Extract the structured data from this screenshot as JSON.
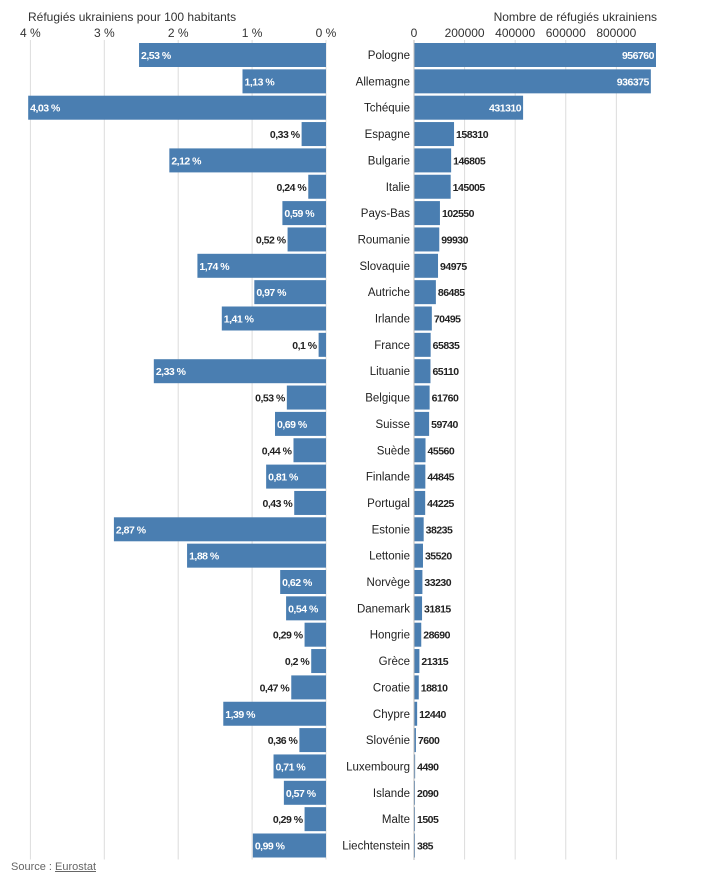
{
  "source": {
    "label": "Source : ",
    "link": "Eurostat"
  },
  "colors": {
    "bar": "#4a7eb1",
    "grid": "#dcdcdc"
  },
  "chart_data": [
    {
      "type": "bar",
      "orientation": "horizontal",
      "direction": "right-to-left",
      "title": "Réfugiés ukrainiens pour 100 habitants",
      "unit": "%",
      "xlim": [
        0,
        4
      ],
      "ticks": [
        0,
        1,
        2,
        3,
        4
      ],
      "tick_labels": [
        "0 %",
        "1 %",
        "2 %",
        "3 %",
        "4 %"
      ],
      "grid": true,
      "categories": [
        "Pologne",
        "Allemagne",
        "Tchéquie",
        "Espagne",
        "Bulgarie",
        "Italie",
        "Pays-Bas",
        "Roumanie",
        "Slovaquie",
        "Autriche",
        "Irlande",
        "France",
        "Lituanie",
        "Belgique",
        "Suisse",
        "Suède",
        "Finlande",
        "Portugal",
        "Estonie",
        "Lettonie",
        "Norvège",
        "Danemark",
        "Hongrie",
        "Grèce",
        "Croatie",
        "Chypre",
        "Slovénie",
        "Luxembourg",
        "Islande",
        "Malte",
        "Liechtenstein"
      ],
      "values": [
        2.53,
        1.13,
        4.03,
        0.33,
        2.12,
        0.24,
        0.59,
        0.52,
        1.74,
        0.97,
        1.41,
        0.1,
        2.33,
        0.53,
        0.69,
        0.44,
        0.81,
        0.43,
        2.87,
        1.88,
        0.62,
        0.54,
        0.29,
        0.2,
        0.47,
        1.39,
        0.36,
        0.71,
        0.57,
        0.29,
        0.99
      ],
      "labels": [
        "2,53 %",
        "1,13 %",
        "4,03 %",
        "0,33 %",
        "2,12 %",
        "0,24 %",
        "0,59 %",
        "0,52 %",
        "1,74 %",
        "0,97 %",
        "1,41 %",
        "0,1 %",
        "2,33 %",
        "0,53 %",
        "0,69 %",
        "0,44 %",
        "0,81 %",
        "0,43 %",
        "2,87 %",
        "1,88 %",
        "0,62 %",
        "0,54 %",
        "0,29 %",
        "0,2 %",
        "0,47 %",
        "1,39 %",
        "0,36 %",
        "0,71 %",
        "0,57 %",
        "0,29 %",
        "0,99 %"
      ]
    },
    {
      "type": "bar",
      "orientation": "horizontal",
      "direction": "left-to-right",
      "title": "Nombre de réfugiés ukrainiens",
      "xlim": [
        0,
        950000
      ],
      "ticks": [
        0,
        200000,
        400000,
        600000,
        800000
      ],
      "tick_labels": [
        "0",
        "200000",
        "400000",
        "600000",
        "800000"
      ],
      "grid": true,
      "categories": [
        "Pologne",
        "Allemagne",
        "Tchéquie",
        "Espagne",
        "Bulgarie",
        "Italie",
        "Pays-Bas",
        "Roumanie",
        "Slovaquie",
        "Autriche",
        "Irlande",
        "France",
        "Lituanie",
        "Belgique",
        "Suisse",
        "Suède",
        "Finlande",
        "Portugal",
        "Estonie",
        "Lettonie",
        "Norvège",
        "Danemark",
        "Hongrie",
        "Grèce",
        "Croatie",
        "Chypre",
        "Slovénie",
        "Luxembourg",
        "Islande",
        "Malte",
        "Liechtenstein"
      ],
      "values": [
        956760,
        936375,
        431310,
        158310,
        146805,
        145005,
        102550,
        99930,
        94975,
        86485,
        70495,
        65835,
        65110,
        61760,
        59740,
        45560,
        44845,
        44225,
        38235,
        35520,
        33230,
        31815,
        28690,
        21315,
        18810,
        12440,
        7600,
        4490,
        2090,
        1505,
        385
      ],
      "labels": [
        "956760",
        "936375",
        "431310",
        "158310",
        "146805",
        "145005",
        "102550",
        "99930",
        "94975",
        "86485",
        "70495",
        "65835",
        "65110",
        "61760",
        "59740",
        "45560",
        "44845",
        "44225",
        "38235",
        "35520",
        "33230",
        "31815",
        "28690",
        "21315",
        "18810",
        "12440",
        "7600",
        "4490",
        "2090",
        "1505",
        "385"
      ]
    }
  ]
}
